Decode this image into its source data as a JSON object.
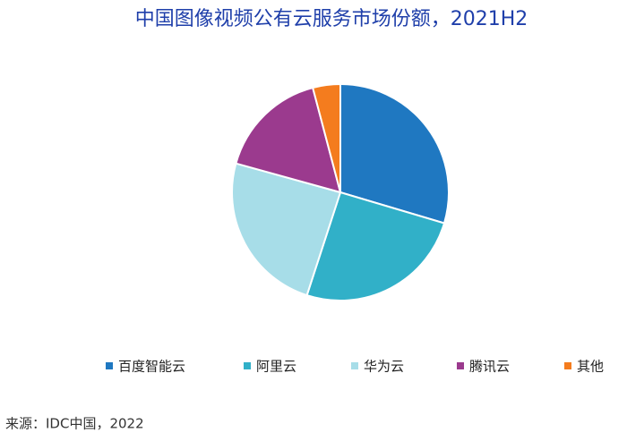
{
  "chart_data": {
    "type": "pie",
    "title": "中国图像视频公有云服务市场份额，2021H2",
    "categories": [
      "百度智能云",
      "阿里云",
      "华为云",
      "腾讯云",
      "其他"
    ],
    "values": [
      29.6,
      25.4,
      24.3,
      16.6,
      4.1
    ],
    "colors": [
      "#1f78c1",
      "#31b0c8",
      "#a7dde8",
      "#9b3a8e",
      "#f47c1e"
    ],
    "source": "来源：IDC中国，2022"
  }
}
